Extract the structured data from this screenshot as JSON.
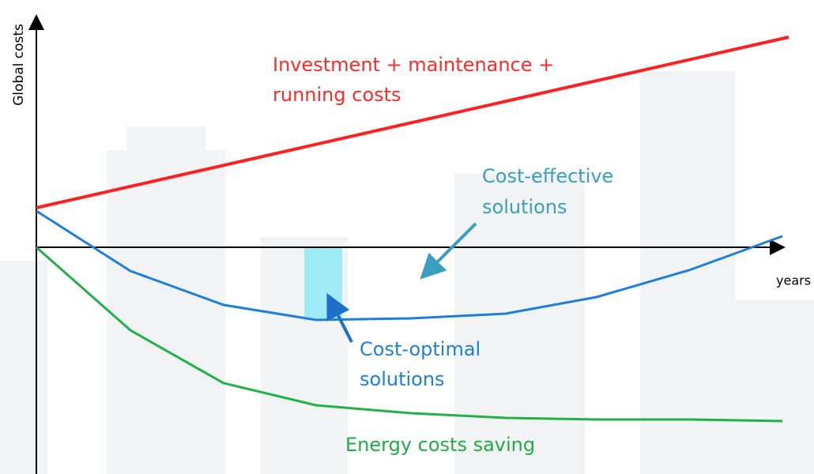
{
  "axes": {
    "y_label": "Global costs",
    "x_label": "years"
  },
  "labels": {
    "investment": [
      "Investment + maintenance +",
      "running costs"
    ],
    "cost_effective": [
      "Cost-effective",
      "solutions"
    ],
    "cost_optimal": [
      "Cost-optimal",
      "solutions"
    ],
    "energy": "Energy costs saving"
  }
}
